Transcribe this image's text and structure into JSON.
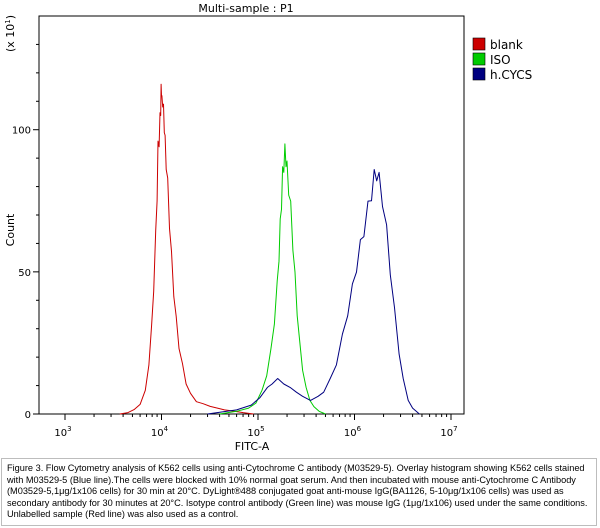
{
  "chart_data": {
    "type": "line",
    "title": "Multi-sample : P1",
    "xlabel": "FITC-A",
    "ylabel": "Count",
    "y_multiplier_label": "(x 10",
    "y_multiplier_exp": "1",
    "x_scale": "log",
    "xlim": [
      1000,
      10000000
    ],
    "ylim": [
      0,
      140
    ],
    "x_tick_bases": [
      "10",
      "10",
      "10",
      "10",
      "10"
    ],
    "x_tick_exps": [
      "3",
      "4",
      "5",
      "6",
      "7"
    ],
    "x_tick_values": [
      1000,
      10000,
      100000,
      1000000,
      10000000
    ],
    "y_ticks": [
      0,
      50,
      100
    ],
    "grid": false,
    "legend_position": "top-right",
    "series": [
      {
        "name": "blank",
        "color": "#cc0000",
        "points": [
          [
            3700,
            0
          ],
          [
            4500,
            0.5
          ],
          [
            5200,
            1.5
          ],
          [
            6000,
            3.5
          ],
          [
            6800,
            8
          ],
          [
            7400,
            18
          ],
          [
            7900,
            30
          ],
          [
            8300,
            45
          ],
          [
            8700,
            62
          ],
          [
            9000,
            78
          ],
          [
            9200,
            93
          ],
          [
            9450,
            97
          ],
          [
            9650,
            103
          ],
          [
            9800,
            108
          ],
          [
            9900,
            113
          ],
          [
            10000,
            115
          ],
          [
            10100,
            109
          ],
          [
            10300,
            111
          ],
          [
            10500,
            106
          ],
          [
            10700,
            102
          ],
          [
            10900,
            95
          ],
          [
            11200,
            89
          ],
          [
            11600,
            80
          ],
          [
            12100,
            68
          ],
          [
            12700,
            55
          ],
          [
            13400,
            43
          ],
          [
            14200,
            33
          ],
          [
            15200,
            24
          ],
          [
            16500,
            17
          ],
          [
            18000,
            11
          ],
          [
            20000,
            7
          ],
          [
            23000,
            4.5
          ],
          [
            27000,
            3.5
          ],
          [
            32000,
            2.8
          ],
          [
            38000,
            2
          ],
          [
            45000,
            1.5
          ],
          [
            55000,
            1
          ],
          [
            70000,
            0.5
          ],
          [
            90000,
            0
          ]
        ]
      },
      {
        "name": "ISO",
        "color": "#00cc00",
        "points": [
          [
            40000,
            0
          ],
          [
            60000,
            1
          ],
          [
            80000,
            2
          ],
          [
            95000,
            4
          ],
          [
            110000,
            8
          ],
          [
            123000,
            14
          ],
          [
            136000,
            22
          ],
          [
            148000,
            33
          ],
          [
            158000,
            45
          ],
          [
            165000,
            56
          ],
          [
            170000,
            66
          ],
          [
            175000,
            75
          ],
          [
            180000,
            84
          ],
          [
            185000,
            88
          ],
          [
            190000,
            92
          ],
          [
            195000,
            90
          ],
          [
            200000,
            86
          ],
          [
            208000,
            80
          ],
          [
            218000,
            72
          ],
          [
            230000,
            60
          ],
          [
            242000,
            48
          ],
          [
            255000,
            36
          ],
          [
            270000,
            25
          ],
          [
            290000,
            16
          ],
          [
            315000,
            9
          ],
          [
            345000,
            5
          ],
          [
            380000,
            2.5
          ],
          [
            430000,
            1
          ],
          [
            500000,
            0
          ]
        ]
      },
      {
        "name": "h.CYCS",
        "color": "#000080",
        "points": [
          [
            30000,
            0
          ],
          [
            60000,
            1.5
          ],
          [
            85000,
            3
          ],
          [
            105000,
            6
          ],
          [
            125000,
            9
          ],
          [
            140000,
            11
          ],
          [
            160000,
            12
          ],
          [
            185000,
            11
          ],
          [
            215000,
            9
          ],
          [
            250000,
            8
          ],
          [
            290000,
            6
          ],
          [
            350000,
            5
          ],
          [
            420000,
            6
          ],
          [
            480000,
            8
          ],
          [
            560000,
            12
          ],
          [
            650000,
            18
          ],
          [
            750000,
            27
          ],
          [
            850000,
            36
          ],
          [
            950000,
            44
          ],
          [
            1050000,
            52
          ],
          [
            1150000,
            59
          ],
          [
            1250000,
            65
          ],
          [
            1380000,
            72
          ],
          [
            1500000,
            78
          ],
          [
            1600000,
            83
          ],
          [
            1700000,
            85
          ],
          [
            1800000,
            82
          ],
          [
            1950000,
            76
          ],
          [
            2150000,
            64
          ],
          [
            2350000,
            51
          ],
          [
            2600000,
            36
          ],
          [
            2900000,
            22
          ],
          [
            3200000,
            12
          ],
          [
            3600000,
            5
          ],
          [
            4000000,
            2
          ],
          [
            4700000,
            0
          ]
        ]
      }
    ]
  },
  "caption": "Figure 3. Flow Cytometry analysis of K562 cells using anti-Cytochrome C antibody (M03529-5). Overlay histogram showing K562 cells stained with M03529-5 (Blue line).The cells were blocked with 10% normal goat serum. And then incubated with mouse anti-Cytochrome C Antibody (M03529-5,1μg/1x106 cells) for 30 min at 20°C. DyLight®488 conjugated goat anti-mouse IgG(BA1126, 5-10μg/1x106 cells) was used as secondary antibody for 30 minutes at 20°C. Isotype control antibody (Green line) was mouse IgG (1μg/1x106) used under the same conditions. Unlabelled sample (Red line) was also used as a control."
}
